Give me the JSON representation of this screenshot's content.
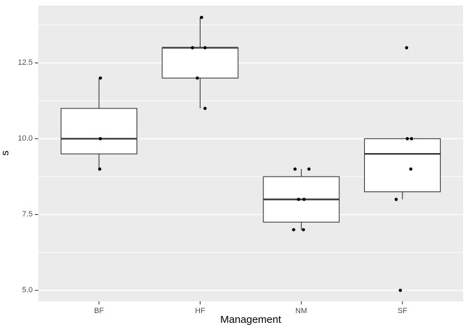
{
  "chart_data": {
    "type": "boxplot",
    "title": "",
    "xlabel": "Management",
    "ylabel": "s",
    "categories": [
      "BF",
      "HF",
      "NM",
      "SF"
    ],
    "x_positions": [
      1,
      2,
      3,
      4
    ],
    "xlim": [
      0.4,
      4.6
    ],
    "ylim": [
      4.64,
      14.39
    ],
    "y_ticks": [
      5.0,
      7.5,
      10.0,
      12.5
    ],
    "y_tick_labels": [
      "5.0",
      "7.5",
      "10.0",
      "12.5"
    ],
    "y_minor_ticks": [
      6.25,
      8.75,
      11.25,
      13.75
    ],
    "grid": true,
    "legend_position": "none",
    "box_width_units": 0.75,
    "series": [
      {
        "category": "BF",
        "q1": 9.5,
        "median": 10,
        "q3": 11,
        "whisker_low": 9,
        "whisker_high": 12,
        "outliers": [],
        "raw_values": [
          9,
          10,
          12
        ],
        "points": [
          {
            "y": 12,
            "dx": 2
          },
          {
            "y": 10,
            "dx": 2
          },
          {
            "y": 9,
            "dx": 1
          }
        ]
      },
      {
        "category": "HF",
        "q1": 12,
        "median": 13,
        "q3": 13,
        "whisker_low": 11,
        "whisker_high": 14,
        "outliers": [],
        "raw_values": [
          11,
          12,
          13,
          13,
          14
        ],
        "points": [
          {
            "y": 14,
            "dx": 2
          },
          {
            "y": 13,
            "dx": -11
          },
          {
            "y": 13,
            "dx": 7
          },
          {
            "y": 12,
            "dx": -4
          },
          {
            "y": 11,
            "dx": 7
          }
        ]
      },
      {
        "category": "NM",
        "q1": 7.25,
        "median": 8,
        "q3": 8.75,
        "whisker_low": 7,
        "whisker_high": 9,
        "outliers": [],
        "raw_values": [
          7,
          7,
          8,
          8,
          9,
          9
        ],
        "points": [
          {
            "y": 9,
            "dx": -9
          },
          {
            "y": 9,
            "dx": 11
          },
          {
            "y": 8,
            "dx": -4
          },
          {
            "y": 8,
            "dx": 4
          },
          {
            "y": 7,
            "dx": -11
          },
          {
            "y": 7,
            "dx": 3
          }
        ]
      },
      {
        "category": "SF",
        "q1": 8.25,
        "median": 9.5,
        "q3": 10,
        "whisker_low": 8,
        "whisker_high": 10,
        "outliers": [
          13,
          5
        ],
        "raw_values": [
          5,
          8,
          9,
          10,
          10,
          13
        ],
        "points": [
          {
            "y": 13,
            "dx": 6
          },
          {
            "y": 10,
            "dx": 7
          },
          {
            "y": 10,
            "dx": 13
          },
          {
            "y": 9,
            "dx": 12
          },
          {
            "y": 8,
            "dx": -9
          },
          {
            "y": 5,
            "dx": -3
          }
        ]
      }
    ],
    "colors": {
      "outer_bg": "#ffffff",
      "panel_bg": "#EBEBEB",
      "grid_major": "#FFFFFF",
      "grid_minor": "#FFFFFF",
      "box_fill": "#FFFFFF",
      "box_border": "#333333",
      "point": "#000000",
      "tick_mark": "#333333",
      "tick_label": "#4D4D4D",
      "axis_title": "#000000"
    }
  }
}
